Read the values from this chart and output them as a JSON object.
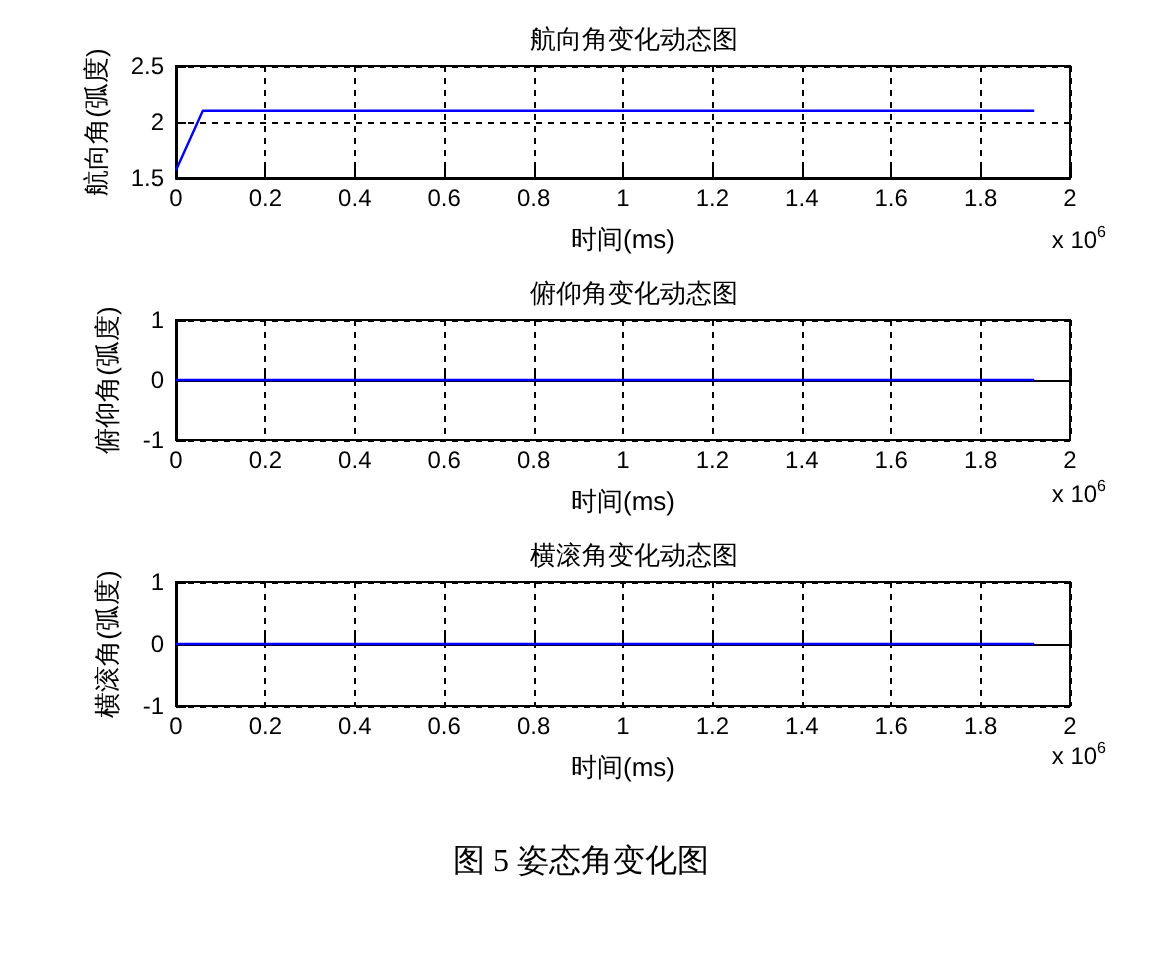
{
  "chart_data": [
    {
      "type": "line",
      "title": "航向角变化动态图",
      "xlabel": "时间(ms)",
      "ylabel": "航向角(弧度)",
      "x": [
        0,
        0.06,
        1.92
      ],
      "series": [
        {
          "color": "#0000ff",
          "values": [
            1.57,
            2.1,
            2.1
          ]
        }
      ],
      "xlim": [
        0,
        2
      ],
      "xticks": [
        0,
        0.2,
        0.4,
        0.6,
        0.8,
        1,
        1.2,
        1.4,
        1.6,
        1.8,
        2
      ],
      "ylim": [
        1.5,
        2.5
      ],
      "yticks": [
        1.5,
        2,
        2.5
      ],
      "grid": true,
      "marker": "none",
      "line_style": "solid",
      "annotations": [
        "x 10$^{6}$"
      ]
    },
    {
      "type": "line",
      "title": "俯仰角变化动态图",
      "xlabel": "时间(ms)",
      "ylabel": "俯仰角(弧度)",
      "x": [
        0,
        1.92
      ],
      "series": [
        {
          "color": "#0000ff",
          "values": [
            0,
            0
          ]
        }
      ],
      "xlim": [
        0,
        2
      ],
      "xticks": [
        0,
        0.2,
        0.4,
        0.6,
        0.8,
        1,
        1.2,
        1.4,
        1.6,
        1.8,
        2
      ],
      "ylim": [
        -1,
        1
      ],
      "yticks": [
        -1,
        0,
        1
      ],
      "grid": true,
      "marker": "none",
      "line_style": "solid",
      "annotations": [
        "x 10$^{6}$"
      ]
    },
    {
      "type": "line",
      "title": "横滚角变化动态图",
      "xlabel": "时间(ms)",
      "ylabel": "横滚角(弧度)",
      "x": [
        0,
        1.92
      ],
      "series": [
        {
          "color": "#0000ff",
          "values": [
            0,
            0
          ]
        }
      ],
      "xlim": [
        0,
        2
      ],
      "xticks": [
        0,
        0.2,
        0.4,
        0.6,
        0.8,
        1,
        1.2,
        1.4,
        1.6,
        1.8,
        2
      ],
      "ylim": [
        -1,
        1
      ],
      "yticks": [
        -1,
        0,
        1
      ],
      "grid": true,
      "marker": "none",
      "line_style": "solid",
      "annotations": [
        "x 10$^{6}$",
        "图 5 姿态角变化图"
      ]
    }
  ]
}
